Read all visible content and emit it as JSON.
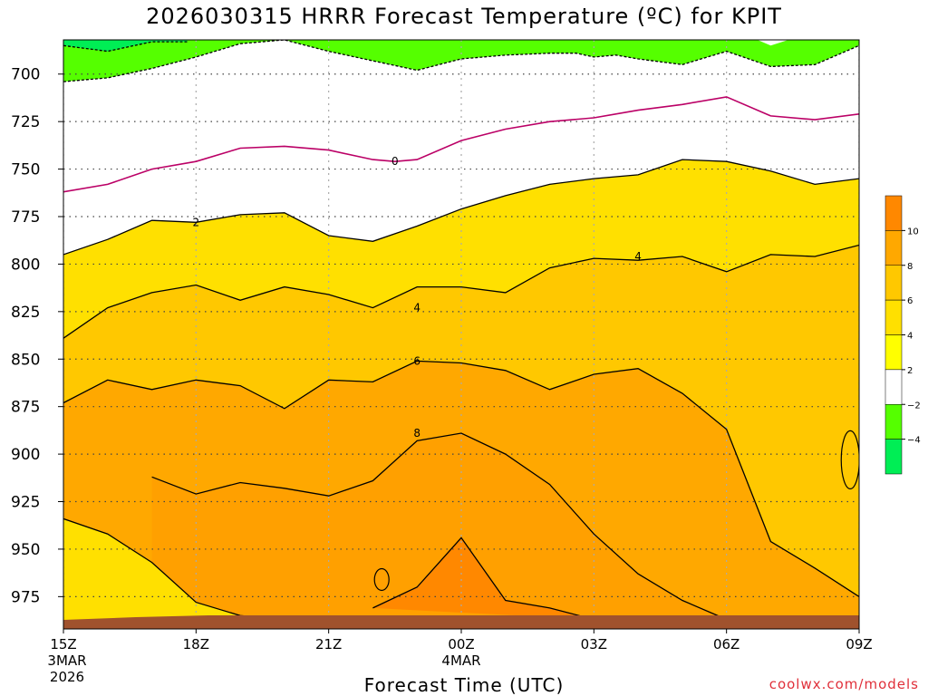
{
  "chart_data": {
    "type": "area",
    "title": "2026030315 HRRR Forecast Temperature (ºC) for KPIT",
    "xlabel": "Forecast Time (UTC)",
    "ylabel": "",
    "x_ticks": [
      {
        "lines": [
          "15Z",
          "3MAR",
          "2026"
        ]
      },
      {
        "lines": [
          "18Z"
        ]
      },
      {
        "lines": [
          "21Z"
        ]
      },
      {
        "lines": [
          "00Z",
          "4MAR"
        ]
      },
      {
        "lines": [
          "03Z"
        ]
      },
      {
        "lines": [
          "06Z"
        ]
      },
      {
        "lines": [
          "09Z"
        ]
      }
    ],
    "x_hours": [
      0,
      3,
      6,
      9,
      12,
      15,
      18
    ],
    "xlim_hours": [
      0,
      18
    ],
    "y_ticks": [
      700,
      725,
      750,
      775,
      800,
      825,
      850,
      875,
      900,
      925,
      950,
      975
    ],
    "ylim_hPa": [
      682,
      992
    ],
    "grid": true,
    "colorbar": {
      "levels": [
        -4,
        -2,
        2,
        4,
        6,
        8,
        10
      ],
      "labels": [
        "−4",
        "−2",
        "2",
        "4",
        "6",
        "8",
        "10"
      ],
      "colors": [
        "#00ee55",
        "#55ff00",
        "#ffffff",
        "#ffff00",
        "#ffe000",
        "#ffc800",
        "#ffa800",
        "#ff8800"
      ]
    },
    "contour_labels": [
      "0",
      "2",
      "4",
      "4",
      "6",
      "8"
    ],
    "contours": [
      {
        "level": -2,
        "color": "#000000",
        "dashed": true,
        "points": [
          [
            0,
            704
          ],
          [
            1,
            702
          ],
          [
            2,
            697
          ],
          [
            3,
            691
          ],
          [
            4,
            684
          ],
          [
            5,
            682
          ],
          [
            6,
            688
          ],
          [
            7,
            693
          ],
          [
            8,
            698
          ],
          [
            9,
            692
          ],
          [
            10,
            690
          ],
          [
            11,
            689
          ],
          [
            11.6,
            689
          ],
          [
            12,
            691
          ],
          [
            12.5,
            690
          ],
          [
            13,
            692
          ],
          [
            14,
            695
          ],
          [
            15,
            688
          ],
          [
            16,
            696
          ],
          [
            17,
            695
          ],
          [
            18,
            685
          ]
        ]
      },
      {
        "level": -2,
        "color": "#000000",
        "dashed": true,
        "points": [
          [
            0,
            685
          ],
          [
            1,
            688
          ],
          [
            2,
            683
          ],
          [
            2.8,
            683
          ]
        ]
      },
      {
        "level": -2,
        "color": "#000000",
        "dashed": true,
        "points": [
          [
            15.8,
            682
          ],
          [
            15.8,
            682
          ]
        ]
      },
      {
        "level": 0,
        "color": "#bb0066",
        "dashed": false,
        "points": [
          [
            0,
            762
          ],
          [
            1,
            758
          ],
          [
            2,
            750
          ],
          [
            3,
            746
          ],
          [
            4,
            739
          ],
          [
            5,
            738
          ],
          [
            6,
            740
          ],
          [
            7,
            745
          ],
          [
            7.5,
            746
          ],
          [
            8,
            745
          ],
          [
            9,
            735
          ],
          [
            10,
            729
          ],
          [
            11,
            725
          ],
          [
            12,
            723
          ],
          [
            13,
            719
          ],
          [
            14,
            716
          ],
          [
            15,
            712
          ],
          [
            16,
            722
          ],
          [
            17,
            724
          ],
          [
            18,
            721
          ]
        ]
      },
      {
        "level": 2,
        "color": "#000000",
        "dashed": false,
        "points": [
          [
            0,
            795
          ],
          [
            1,
            787
          ],
          [
            2,
            777
          ],
          [
            3,
            778
          ],
          [
            4,
            774
          ],
          [
            5,
            773
          ],
          [
            6,
            785
          ],
          [
            7,
            788
          ],
          [
            8,
            780
          ],
          [
            9,
            771
          ],
          [
            10,
            764
          ],
          [
            11,
            758
          ],
          [
            12,
            755
          ],
          [
            13,
            753
          ],
          [
            14,
            745
          ],
          [
            15,
            746
          ],
          [
            16,
            751
          ],
          [
            17,
            758
          ],
          [
            18,
            755
          ]
        ]
      },
      {
        "level": 4,
        "color": "#000000",
        "dashed": false,
        "points": [
          [
            0,
            839
          ],
          [
            1,
            823
          ],
          [
            2,
            815
          ],
          [
            3,
            811
          ],
          [
            4,
            819
          ],
          [
            5,
            812
          ],
          [
            6,
            816
          ],
          [
            7,
            823
          ],
          [
            8,
            812
          ],
          [
            9,
            812
          ],
          [
            10,
            815
          ],
          [
            11,
            802
          ],
          [
            12,
            797
          ],
          [
            13,
            798
          ],
          [
            14,
            796
          ],
          [
            15,
            804
          ],
          [
            16,
            795
          ],
          [
            17,
            796
          ],
          [
            18,
            790
          ]
        ]
      },
      {
        "level": 6,
        "color": "#000000",
        "dashed": false,
        "points": [
          [
            0,
            873
          ],
          [
            1,
            861
          ],
          [
            2,
            866
          ],
          [
            3,
            861
          ],
          [
            4,
            864
          ],
          [
            5,
            876
          ],
          [
            6,
            861
          ],
          [
            7,
            862
          ],
          [
            8,
            851
          ],
          [
            9,
            852
          ],
          [
            10,
            856
          ],
          [
            11,
            866
          ],
          [
            12,
            858
          ],
          [
            13,
            855
          ],
          [
            14,
            868
          ],
          [
            15,
            887
          ],
          [
            16,
            946
          ],
          [
            17,
            960
          ],
          [
            18,
            975
          ]
        ]
      },
      {
        "level": 8,
        "color": "#000000",
        "dashed": false,
        "points": [
          [
            0,
            934
          ],
          [
            1,
            942
          ],
          [
            2,
            957
          ],
          [
            3,
            978
          ],
          [
            4,
            985
          ],
          [
            5,
            987
          ],
          [
            6,
            990
          ],
          [
            7,
            990
          ],
          [
            8,
            988
          ]
        ]
      },
      {
        "level": 8,
        "color": "#000000",
        "dashed": false,
        "points": [
          [
            2,
            912
          ],
          [
            3,
            921
          ],
          [
            4,
            915
          ],
          [
            5,
            918
          ],
          [
            6,
            922
          ],
          [
            7,
            914
          ],
          [
            8,
            893
          ],
          [
            9,
            889
          ],
          [
            10,
            900
          ],
          [
            11,
            916
          ],
          [
            12,
            942
          ],
          [
            13,
            963
          ],
          [
            14,
            977
          ],
          [
            15,
            987
          ]
        ]
      },
      {
        "level": 10,
        "color": "#000000",
        "dashed": false,
        "points": [
          [
            7,
            981
          ],
          [
            8,
            970
          ],
          [
            9,
            944
          ],
          [
            10,
            977
          ],
          [
            11,
            981
          ],
          [
            12,
            987
          ]
        ]
      }
    ]
  },
  "credit": "coolwx.com/models"
}
